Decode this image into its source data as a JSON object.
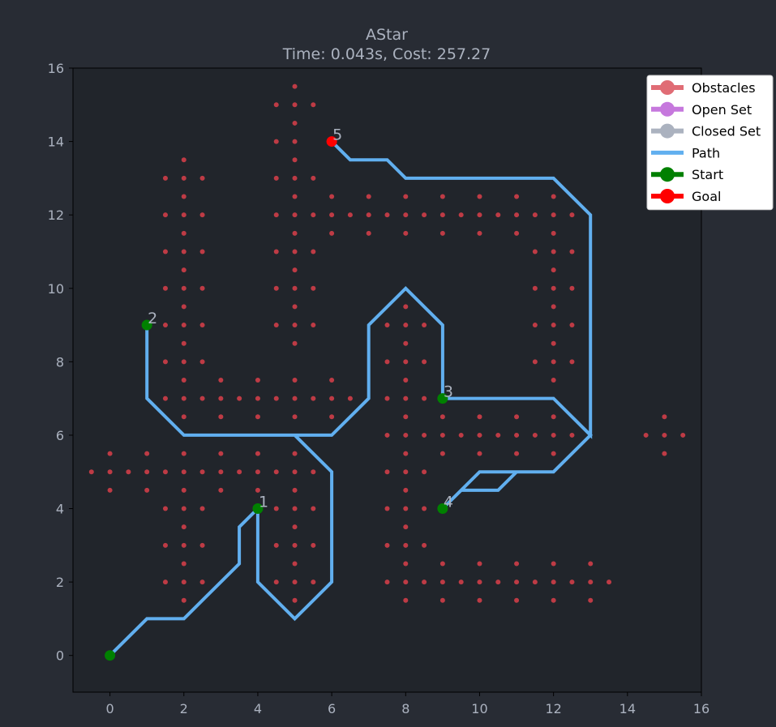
{
  "chart_data": {
    "type": "scatter",
    "title": "AStar",
    "subtitle": "Time: 0.043s, Cost: 257.27",
    "xlim": [
      -1,
      16
    ],
    "ylim": [
      -1,
      16
    ],
    "x_ticks": [
      0,
      2,
      4,
      6,
      8,
      10,
      12,
      14,
      16
    ],
    "y_ticks": [
      0,
      2,
      4,
      6,
      8,
      10,
      12,
      14,
      16
    ],
    "grid": false,
    "legend": {
      "placement": "top-right",
      "entries": [
        {
          "label": "Obstacles",
          "color": "#e06c75",
          "style": "line-marker"
        },
        {
          "label": "Open Set",
          "color": "#c678dd",
          "style": "line-marker"
        },
        {
          "label": "Closed Set",
          "color": "#abb2bf",
          "style": "line-marker"
        },
        {
          "label": "Path",
          "color": "#61afef",
          "style": "line"
        },
        {
          "label": "Start",
          "color": "#008000",
          "style": "line-marker"
        },
        {
          "label": "Goal",
          "color": "#ff0000",
          "style": "line-marker"
        }
      ]
    },
    "colors": {
      "background": "#282c34",
      "axes_bg": "#21252b",
      "axis": "#000000",
      "text": "#abb2bf",
      "obstacle": "#be3b45",
      "path": "#61afef",
      "start": "#008000",
      "goal": "#ff0000"
    },
    "obstacles": [
      [
        -0.5,
        5
      ],
      [
        0,
        5.5
      ],
      [
        0,
        5
      ],
      [
        0,
        4.5
      ],
      [
        0.5,
        5
      ],
      [
        1,
        5.5
      ],
      [
        1,
        5
      ],
      [
        1,
        4.5
      ],
      [
        1.5,
        5
      ],
      [
        2,
        5.5
      ],
      [
        2,
        5
      ],
      [
        2,
        4.5
      ],
      [
        2.5,
        5
      ],
      [
        3,
        5.5
      ],
      [
        3,
        5
      ],
      [
        3,
        4.5
      ],
      [
        3.5,
        5
      ],
      [
        4,
        5.5
      ],
      [
        4,
        5
      ],
      [
        4,
        4.5
      ],
      [
        4.5,
        5
      ],
      [
        5,
        5.5
      ],
      [
        5,
        5
      ],
      [
        5,
        4.5
      ],
      [
        5.5,
        5
      ],
      [
        1.5,
        13
      ],
      [
        2,
        13.5
      ],
      [
        2,
        13
      ],
      [
        2,
        12.5
      ],
      [
        2.5,
        13
      ],
      [
        1.5,
        12
      ],
      [
        2,
        12
      ],
      [
        2,
        11.5
      ],
      [
        2.5,
        12
      ],
      [
        1.5,
        11
      ],
      [
        2,
        11
      ],
      [
        2,
        10.5
      ],
      [
        2.5,
        11
      ],
      [
        1.5,
        10
      ],
      [
        2,
        10
      ],
      [
        2,
        9.5
      ],
      [
        2.5,
        10
      ],
      [
        1.5,
        9
      ],
      [
        2,
        9
      ],
      [
        2,
        8.5
      ],
      [
        2.5,
        9
      ],
      [
        1.5,
        8
      ],
      [
        2,
        8
      ],
      [
        2,
        7.5
      ],
      [
        2.5,
        8
      ],
      [
        1.5,
        4
      ],
      [
        2,
        4
      ],
      [
        2,
        3.5
      ],
      [
        2.5,
        4
      ],
      [
        1.5,
        3
      ],
      [
        2,
        3
      ],
      [
        2,
        2.5
      ],
      [
        2.5,
        3
      ],
      [
        1.5,
        2
      ],
      [
        2,
        2
      ],
      [
        2,
        1.5
      ],
      [
        2.5,
        2
      ],
      [
        1.5,
        7
      ],
      [
        2,
        7
      ],
      [
        2,
        6.5
      ],
      [
        2.5,
        7
      ],
      [
        3,
        7.5
      ],
      [
        3,
        7
      ],
      [
        3,
        6.5
      ],
      [
        3.5,
        7
      ],
      [
        4,
        7.5
      ],
      [
        4,
        7
      ],
      [
        4,
        6.5
      ],
      [
        4.5,
        7
      ],
      [
        5,
        7.5
      ],
      [
        5,
        7
      ],
      [
        5,
        6.5
      ],
      [
        5.5,
        7
      ],
      [
        6,
        7.5
      ],
      [
        6,
        7
      ],
      [
        6,
        6.5
      ],
      [
        6.5,
        7
      ],
      [
        4.5,
        15
      ],
      [
        5,
        15.5
      ],
      [
        5,
        15
      ],
      [
        5,
        14.5
      ],
      [
        5.5,
        15
      ],
      [
        4.5,
        14
      ],
      [
        5,
        14
      ],
      [
        5,
        13.5
      ],
      [
        4.5,
        13
      ],
      [
        5,
        13
      ],
      [
        5,
        12.5
      ],
      [
        5.5,
        13
      ],
      [
        4.5,
        12
      ],
      [
        5,
        12
      ],
      [
        5,
        11.5
      ],
      [
        5.5,
        12
      ],
      [
        4.5,
        11
      ],
      [
        5,
        11
      ],
      [
        5,
        10.5
      ],
      [
        5.5,
        11
      ],
      [
        4.5,
        10
      ],
      [
        5,
        10
      ],
      [
        5,
        9.5
      ],
      [
        5.5,
        10
      ],
      [
        4.5,
        9
      ],
      [
        5,
        9
      ],
      [
        5,
        8.5
      ],
      [
        5.5,
        9
      ],
      [
        6,
        12.5
      ],
      [
        6,
        12
      ],
      [
        6,
        11.5
      ],
      [
        6.5,
        12
      ],
      [
        7,
        12.5
      ],
      [
        7,
        12
      ],
      [
        7,
        11.5
      ],
      [
        7.5,
        12
      ],
      [
        8,
        12.5
      ],
      [
        8,
        12
      ],
      [
        8,
        11.5
      ],
      [
        8.5,
        12
      ],
      [
        9,
        12.5
      ],
      [
        9,
        12
      ],
      [
        9,
        11.5
      ],
      [
        9.5,
        12
      ],
      [
        10,
        12.5
      ],
      [
        10,
        12
      ],
      [
        10,
        11.5
      ],
      [
        10.5,
        12
      ],
      [
        11,
        12.5
      ],
      [
        11,
        12
      ],
      [
        11,
        11.5
      ],
      [
        11.5,
        12
      ],
      [
        12,
        12.5
      ],
      [
        12,
        12
      ],
      [
        12,
        11.5
      ],
      [
        12.5,
        12
      ],
      [
        11.5,
        11
      ],
      [
        12,
        11
      ],
      [
        12,
        10.5
      ],
      [
        12.5,
        11
      ],
      [
        11.5,
        10
      ],
      [
        12,
        10
      ],
      [
        12,
        9.5
      ],
      [
        12.5,
        10
      ],
      [
        11.5,
        9
      ],
      [
        12,
        9
      ],
      [
        12,
        8.5
      ],
      [
        12.5,
        9
      ],
      [
        11.5,
        8
      ],
      [
        12,
        8
      ],
      [
        12,
        7.5
      ],
      [
        12.5,
        8
      ],
      [
        7.5,
        9
      ],
      [
        8,
        9.5
      ],
      [
        8,
        9
      ],
      [
        8,
        8.5
      ],
      [
        8.5,
        9
      ],
      [
        7.5,
        8
      ],
      [
        8,
        8
      ],
      [
        8,
        7.5
      ],
      [
        8.5,
        8
      ],
      [
        7.5,
        7
      ],
      [
        8,
        7
      ],
      [
        8,
        6.5
      ],
      [
        8.5,
        7
      ],
      [
        7.5,
        6
      ],
      [
        8,
        6
      ],
      [
        8,
        5.5
      ],
      [
        8.5,
        6
      ],
      [
        9,
        6.5
      ],
      [
        9,
        6
      ],
      [
        9,
        5.5
      ],
      [
        9.5,
        6
      ],
      [
        10,
        6.5
      ],
      [
        10,
        6
      ],
      [
        10,
        5.5
      ],
      [
        10.5,
        6
      ],
      [
        11,
        6.5
      ],
      [
        11,
        6
      ],
      [
        11,
        5.5
      ],
      [
        11.5,
        6
      ],
      [
        12,
        6.5
      ],
      [
        12,
        6
      ],
      [
        12,
        5.5
      ],
      [
        12.5,
        6
      ],
      [
        7.5,
        5
      ],
      [
        8,
        5
      ],
      [
        8,
        4.5
      ],
      [
        8.5,
        5
      ],
      [
        7.5,
        4
      ],
      [
        8,
        4
      ],
      [
        8,
        3.5
      ],
      [
        8.5,
        4
      ],
      [
        7.5,
        3
      ],
      [
        8,
        3
      ],
      [
        8,
        2.5
      ],
      [
        8.5,
        3
      ],
      [
        4.5,
        4
      ],
      [
        5,
        4
      ],
      [
        5,
        3.5
      ],
      [
        5.5,
        4
      ],
      [
        4.5,
        3
      ],
      [
        5,
        3
      ],
      [
        5,
        2.5
      ],
      [
        5.5,
        3
      ],
      [
        4.5,
        2
      ],
      [
        5,
        2
      ],
      [
        5,
        1.5
      ],
      [
        5.5,
        2
      ],
      [
        7.5,
        2
      ],
      [
        8,
        2
      ],
      [
        8,
        1.5
      ],
      [
        8.5,
        2
      ],
      [
        9,
        2.5
      ],
      [
        9,
        2
      ],
      [
        9,
        1.5
      ],
      [
        9.5,
        2
      ],
      [
        10,
        2.5
      ],
      [
        10,
        2
      ],
      [
        10,
        1.5
      ],
      [
        10.5,
        2
      ],
      [
        11,
        2.5
      ],
      [
        11,
        2
      ],
      [
        11,
        1.5
      ],
      [
        11.5,
        2
      ],
      [
        12,
        2.5
      ],
      [
        12,
        2
      ],
      [
        12,
        1.5
      ],
      [
        12.5,
        2
      ],
      [
        13,
        2.5
      ],
      [
        13,
        2
      ],
      [
        13,
        1.5
      ],
      [
        13.5,
        2
      ],
      [
        14.5,
        6
      ],
      [
        15,
        6.5
      ],
      [
        15,
        6
      ],
      [
        15,
        5.5
      ],
      [
        15.5,
        6
      ]
    ],
    "path": [
      [
        0,
        0
      ],
      [
        1,
        1
      ],
      [
        2,
        1
      ],
      [
        3.5,
        2.5
      ],
      [
        3.5,
        3.5
      ],
      [
        4,
        4
      ],
      [
        4,
        2
      ],
      [
        5,
        1
      ],
      [
        6,
        2
      ],
      [
        6,
        5
      ],
      [
        5,
        6
      ],
      [
        2,
        6
      ],
      [
        1,
        7
      ],
      [
        1,
        9
      ],
      [
        1,
        7
      ],
      [
        2,
        6
      ],
      [
        6,
        6
      ],
      [
        7,
        7
      ],
      [
        7,
        9
      ],
      [
        8,
        10
      ],
      [
        9,
        9
      ],
      [
        9,
        7
      ],
      [
        12,
        7
      ],
      [
        13,
        6
      ],
      [
        13,
        12
      ],
      [
        12,
        13
      ],
      [
        8,
        13
      ],
      [
        7.5,
        13.5
      ],
      [
        6.5,
        13.5
      ],
      [
        6,
        14
      ],
      [
        6,
        14
      ],
      [
        6.5,
        13.5
      ],
      [
        7.5,
        13.5
      ],
      [
        8,
        13
      ],
      [
        12,
        13
      ],
      [
        13,
        12
      ],
      [
        13,
        6
      ],
      [
        12,
        5
      ],
      [
        10,
        5
      ],
      [
        9,
        4
      ],
      [
        9.5,
        4.5
      ],
      [
        10.5,
        4.5
      ],
      [
        11,
        5
      ],
      [
        12,
        5
      ],
      [
        13,
        6
      ],
      [
        12,
        7
      ],
      [
        9,
        7
      ]
    ],
    "waypoints": [
      {
        "label": "1",
        "x": 4,
        "y": 4,
        "kind": "start"
      },
      {
        "label": "2",
        "x": 1,
        "y": 9,
        "kind": "start"
      },
      {
        "label": "3",
        "x": 9,
        "y": 7,
        "kind": "start"
      },
      {
        "label": "4",
        "x": 9,
        "y": 4,
        "kind": "start"
      },
      {
        "label": "5",
        "x": 6,
        "y": 14,
        "kind": "goal"
      }
    ],
    "start_point": {
      "x": 0,
      "y": 0
    }
  }
}
